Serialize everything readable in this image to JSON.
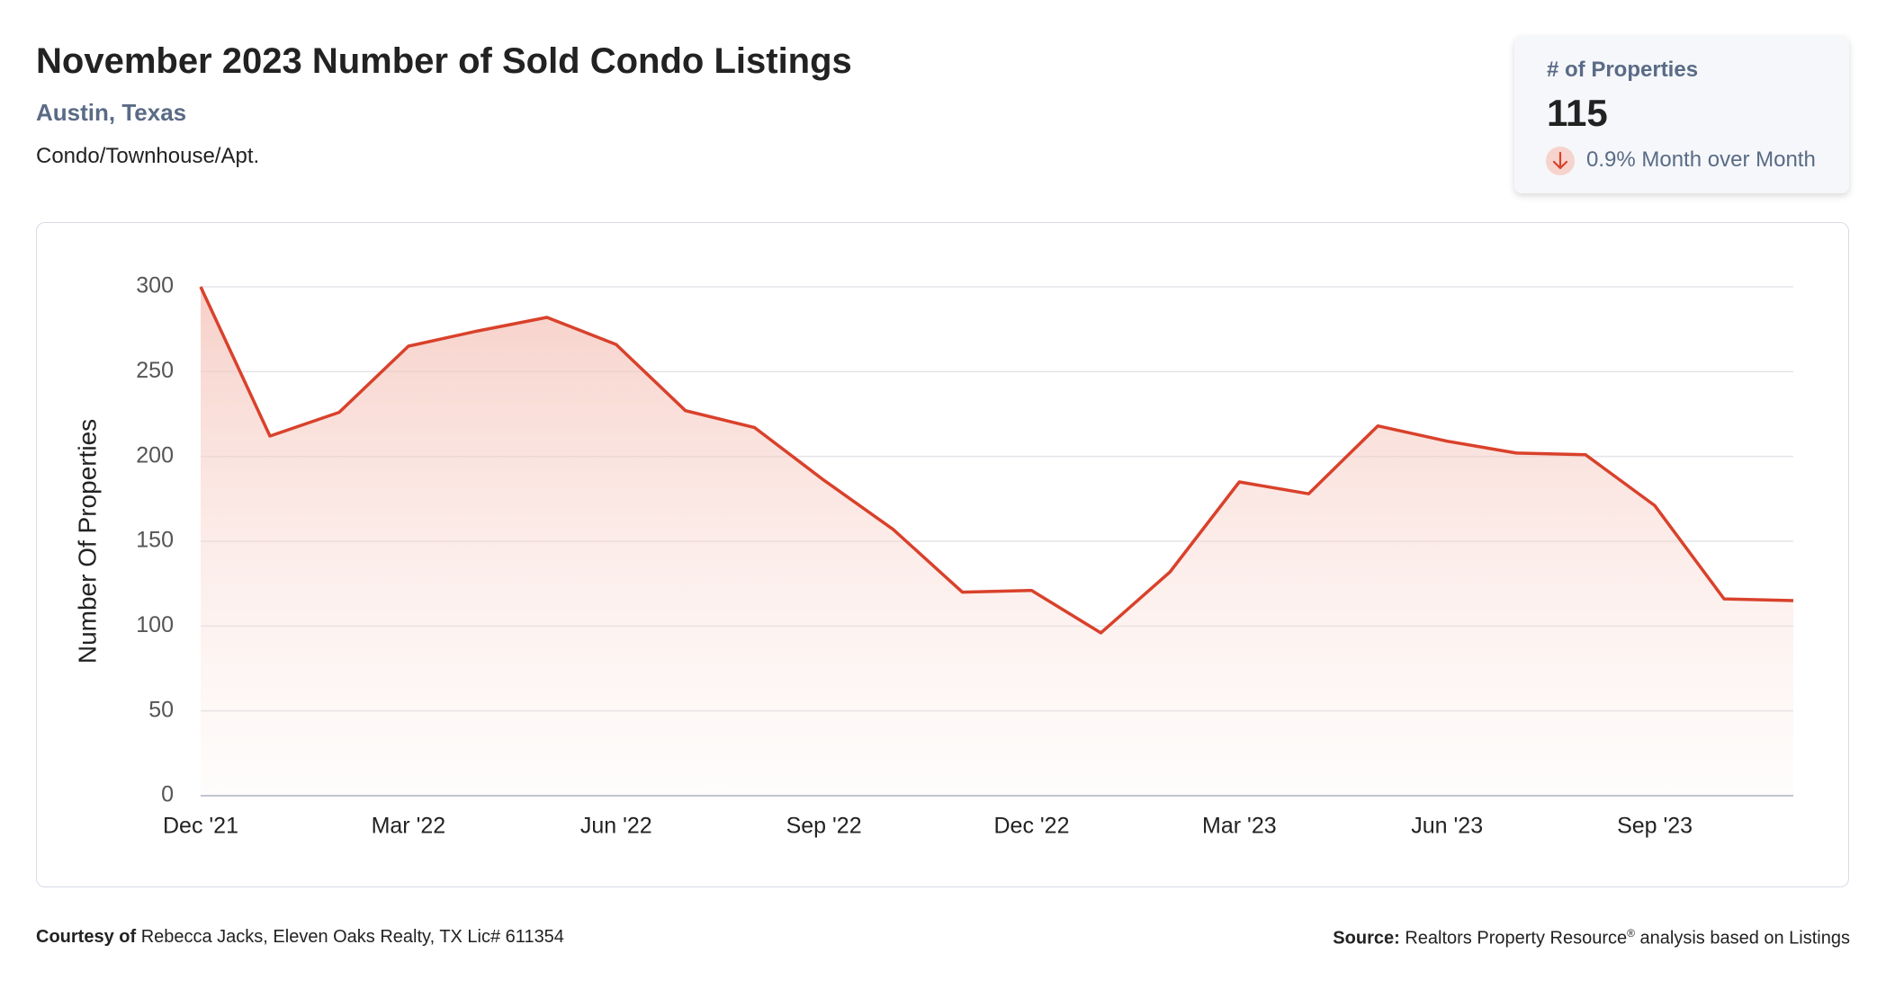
{
  "header": {
    "title": "November 2023 Number of Sold Condo Listings",
    "subtitle": "Austin, Texas",
    "property_type": "Condo/Townhouse/Apt."
  },
  "card": {
    "label": "# of Properties",
    "value": 115,
    "change": "0.9% Month over Month"
  },
  "chart_data": {
    "type": "line",
    "y_label": "Number Of Properties",
    "categories": [
      "Dec '21",
      null,
      null,
      "Mar '22",
      null,
      null,
      "Jun '22",
      null,
      null,
      "Sep '22",
      null,
      null,
      "Dec '22",
      null,
      null,
      "Mar '23",
      null,
      null,
      "Jun '23",
      null,
      null,
      "Sep '23",
      null,
      null
    ],
    "values": [
      300,
      212,
      226,
      265,
      274,
      282,
      266,
      227,
      217,
      186,
      157,
      120,
      121,
      96,
      132,
      185,
      178,
      218,
      209,
      202,
      201,
      171,
      116,
      115
    ],
    "color": "#d9412b",
    "ylim": [
      0,
      300
    ],
    "yticks": [
      0,
      50,
      100,
      150,
      200,
      250,
      300
    ],
    "grid": true
  },
  "footer": {
    "courtesy_label": "Courtesy of",
    "courtesy": "Rebecca Jacks, Eleven Oaks Realty, TX Lic# 611354",
    "source_label": "Source:",
    "source": "Realtors Property Resource",
    "source_mark": "®",
    "source_rest": "analysis based on Listings"
  }
}
